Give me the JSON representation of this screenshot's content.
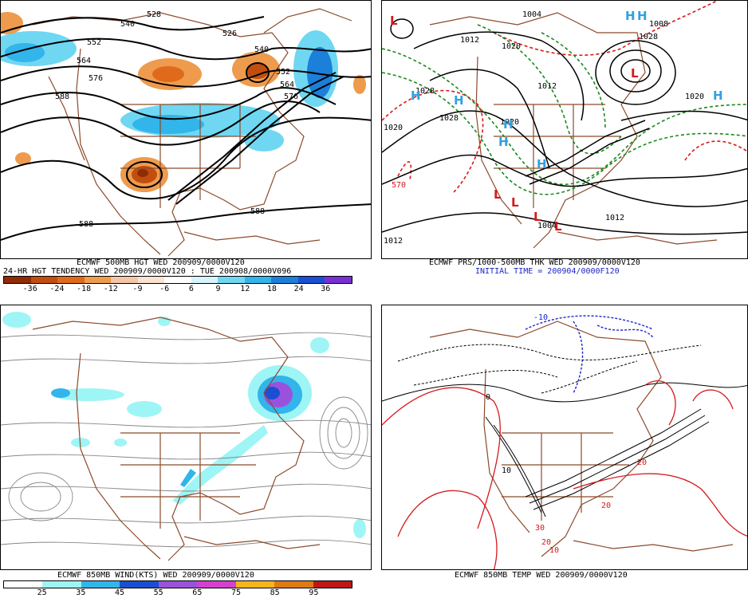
{
  "panels": {
    "tl": {
      "caption1": "ECMWF 500MB HGT WED 200909/0000V120",
      "caption2": "24-HR HGT TENDENCY WED 200909/0000V120 : TUE 200908/0000V096",
      "scale": [
        "-36",
        "-24",
        "-18",
        "-12",
        "-9",
        "-6",
        "6",
        "9",
        "12",
        "18",
        "24",
        "36"
      ],
      "colors": [
        "#f4c6a6",
        "#ee9b4e",
        "#e06a1c",
        "#c14e0f",
        "#8f2c06",
        "#6fd7f2",
        "#31b5ea",
        "#1c7fd9",
        "#1b4fd3",
        "#3a2fc5",
        "#7a2fd4"
      ],
      "contours": [
        "540",
        "528",
        "552",
        "564",
        "576",
        "588",
        "526",
        "540",
        "552",
        "564",
        "576",
        "588",
        "588"
      ]
    },
    "tr": {
      "caption1": "ECMWF PRS/1000-500MB THK WED 200909/0000V120",
      "caption2": "INITIAL TIME = 200904/0000F120",
      "isobars": [
        "1004",
        "1012",
        "1020",
        "1028",
        "1028",
        "1020",
        "1012",
        "1020",
        "1012",
        "1012",
        "1004",
        "1008",
        "1020",
        "1028",
        "570"
      ],
      "high": "H",
      "low": "L"
    },
    "bl": {
      "caption": "ECMWF 850MB WIND(KTS) WED 200909/0000V120",
      "scale": [
        "25",
        "35",
        "45",
        "55",
        "65",
        "75",
        "85",
        "95"
      ],
      "colors": [
        "#ffffff",
        "#9ef5f5",
        "#31b5ea",
        "#1b4fd3",
        "#9a52dd",
        "#d63fd0",
        "#f7b41c",
        "#e07a14",
        "#c01616"
      ]
    },
    "br": {
      "caption": "ECMWF 850MB TEMP WED 200909/0000V120",
      "labels": [
        "-10",
        "0",
        "10",
        "20",
        "20",
        "20",
        "30",
        "10"
      ]
    }
  },
  "style": {
    "land_color": "#8b4a2b",
    "contour_color": "#000000",
    "red": "#d7191c",
    "green": "#1a8a1a",
    "blue": "#1d24c9"
  }
}
